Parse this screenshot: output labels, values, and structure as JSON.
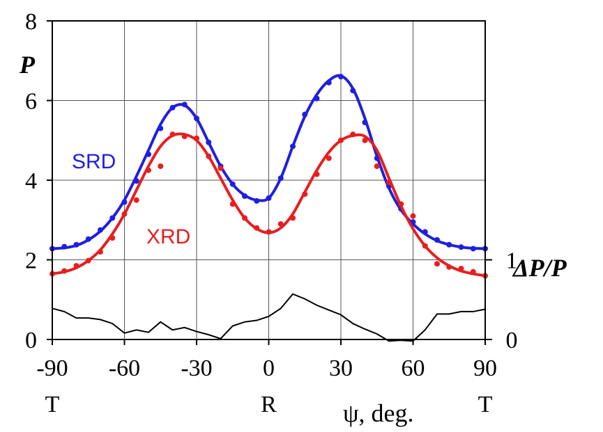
{
  "chart_data": {
    "type": "line",
    "xlabel": "ψ, deg.",
    "ylabel_left": "P",
    "ylabel_right": "ΔP/P",
    "xlim": [
      -90,
      90
    ],
    "ylim": [
      0,
      8
    ],
    "ylim_right": [
      0,
      1
    ],
    "x_ticks": [
      -90,
      -60,
      -30,
      0,
      30,
      60,
      90
    ],
    "x_tick_labels": [
      "-90",
      "-60",
      "-30",
      "0",
      "30",
      "60",
      "90"
    ],
    "y_ticks": [
      0,
      2,
      4,
      6,
      8
    ],
    "y_tick_labels": [
      "0",
      "2",
      "4",
      "6",
      "8"
    ],
    "y_right_ticks": [
      0,
      1
    ],
    "y_right_tick_labels": [
      "0",
      "1"
    ],
    "x_sub_labels": [
      {
        "x": -90,
        "text": "T"
      },
      {
        "x": 0,
        "text": "R"
      },
      {
        "x": 90,
        "text": "T"
      }
    ],
    "grid": true,
    "colors": {
      "SRD": "#1f1fe0",
      "XRD": "#e81e1e",
      "diff": "#000000"
    },
    "series": [
      {
        "name": "SRD",
        "kind": "points",
        "x": [
          -90,
          -85,
          -80,
          -75,
          -70,
          -65,
          -60,
          -55,
          -50,
          -45,
          -40,
          -35,
          -30,
          -25,
          -20,
          -15,
          -10,
          -5,
          0,
          5,
          10,
          15,
          20,
          25,
          30,
          35,
          40,
          45,
          50,
          55,
          60,
          65,
          70,
          75,
          80,
          85,
          90
        ],
        "y": [
          2.28,
          2.33,
          2.38,
          2.52,
          2.75,
          3.05,
          3.45,
          3.98,
          4.65,
          5.3,
          5.82,
          5.9,
          5.55,
          4.95,
          4.35,
          3.9,
          3.6,
          3.48,
          3.55,
          4.05,
          4.85,
          5.65,
          6.05,
          6.45,
          6.6,
          6.25,
          5.45,
          4.55,
          3.85,
          3.28,
          2.95,
          2.7,
          2.5,
          2.38,
          2.32,
          2.28,
          2.28
        ]
      },
      {
        "name": "SRD",
        "kind": "fit",
        "x": [
          -90,
          -85,
          -80,
          -75,
          -70,
          -65,
          -60,
          -55,
          -50,
          -45,
          -40,
          -35,
          -30,
          -25,
          -20,
          -15,
          -10,
          -5,
          0,
          5,
          10,
          15,
          20,
          25,
          30,
          35,
          40,
          45,
          50,
          55,
          60,
          65,
          70,
          75,
          80,
          85,
          90
        ],
        "y": [
          2.28,
          2.3,
          2.36,
          2.5,
          2.72,
          3.05,
          3.5,
          4.1,
          4.75,
          5.4,
          5.82,
          5.88,
          5.55,
          4.95,
          4.35,
          3.9,
          3.62,
          3.5,
          3.55,
          4.05,
          4.85,
          5.6,
          6.15,
          6.5,
          6.62,
          6.3,
          5.55,
          4.6,
          3.8,
          3.25,
          2.9,
          2.65,
          2.48,
          2.38,
          2.32,
          2.29,
          2.28
        ]
      },
      {
        "name": "XRD",
        "kind": "points",
        "x": [
          -90,
          -85,
          -80,
          -75,
          -70,
          -65,
          -60,
          -55,
          -50,
          -45,
          -40,
          -35,
          -30,
          -25,
          -20,
          -15,
          -10,
          -5,
          0,
          5,
          10,
          15,
          20,
          25,
          30,
          35,
          40,
          45,
          50,
          55,
          60,
          65,
          70,
          75,
          80,
          85,
          90
        ],
        "y": [
          1.65,
          1.72,
          1.85,
          1.98,
          2.2,
          2.55,
          3.15,
          3.5,
          4.25,
          4.35,
          5.15,
          5.1,
          5.05,
          4.6,
          4.3,
          3.4,
          3.05,
          2.8,
          2.7,
          2.9,
          3.05,
          3.65,
          4.15,
          4.55,
          5.0,
          5.15,
          5.0,
          4.35,
          3.95,
          3.4,
          3.1,
          2.35,
          1.9,
          1.82,
          1.78,
          1.7,
          1.6
        ]
      },
      {
        "name": "XRD",
        "kind": "fit",
        "x": [
          -90,
          -85,
          -80,
          -75,
          -70,
          -65,
          -60,
          -55,
          -50,
          -45,
          -40,
          -35,
          -30,
          -25,
          -20,
          -15,
          -10,
          -5,
          0,
          5,
          10,
          15,
          20,
          25,
          30,
          35,
          40,
          45,
          50,
          55,
          60,
          65,
          70,
          75,
          80,
          85,
          90
        ],
        "y": [
          1.65,
          1.7,
          1.8,
          1.98,
          2.25,
          2.65,
          3.15,
          3.75,
          4.35,
          4.85,
          5.12,
          5.15,
          5.0,
          4.6,
          4.05,
          3.5,
          3.05,
          2.78,
          2.68,
          2.8,
          3.15,
          3.7,
          4.25,
          4.7,
          5.0,
          5.12,
          5.1,
          4.75,
          4.05,
          3.35,
          2.78,
          2.35,
          2.05,
          1.85,
          1.72,
          1.65,
          1.6
        ]
      },
      {
        "name": "ΔP/P",
        "kind": "line",
        "axis": "right",
        "x": [
          -90,
          -85,
          -80,
          -75,
          -70,
          -65,
          -60,
          -55,
          -50,
          -45,
          -40,
          -35,
          -30,
          -25,
          -20,
          -15,
          -10,
          -5,
          0,
          5,
          10,
          15,
          20,
          25,
          30,
          35,
          40,
          45,
          50,
          55,
          60,
          65,
          70,
          75,
          80,
          85,
          90
        ],
        "y": [
          0.39,
          0.35,
          0.27,
          0.27,
          0.25,
          0.2,
          0.08,
          0.12,
          0.09,
          0.22,
          0.12,
          0.15,
          0.1,
          0.06,
          0.01,
          0.17,
          0.22,
          0.24,
          0.29,
          0.39,
          0.57,
          0.51,
          0.43,
          0.37,
          0.31,
          0.2,
          0.13,
          0.07,
          -0.02,
          -0.01,
          -0.02,
          0.12,
          0.32,
          0.32,
          0.35,
          0.35,
          0.38
        ]
      }
    ],
    "labels": [
      {
        "text": "SRD",
        "color": "#1f1fe0"
      },
      {
        "text": "XRD",
        "color": "#e81e1e"
      }
    ]
  }
}
